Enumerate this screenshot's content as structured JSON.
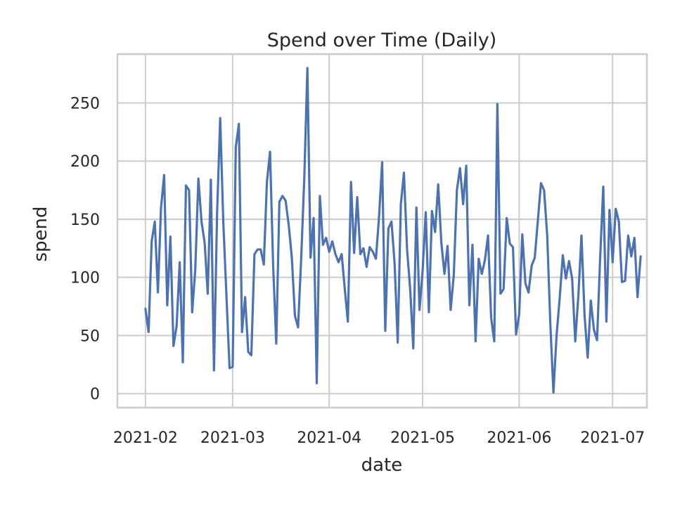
{
  "chart_data": {
    "type": "line",
    "title": "Spend over Time (Daily)",
    "xlabel": "date",
    "ylabel": "spend",
    "ylim": [
      -12,
      292
    ],
    "xlim": [
      "2021-01-23",
      "2021-07-12"
    ],
    "grid": true,
    "x_ticks": [
      "2021-02-01",
      "2021-03-01",
      "2021-04-01",
      "2021-05-01",
      "2021-06-01",
      "2021-07-01"
    ],
    "x_tick_labels": [
      "2021-02",
      "2021-03",
      "2021-04",
      "2021-05",
      "2021-06",
      "2021-07"
    ],
    "y_ticks": [
      0,
      50,
      100,
      150,
      200,
      250
    ],
    "y_tick_labels": [
      "0",
      "50",
      "100",
      "150",
      "200",
      "250"
    ],
    "series": [
      {
        "color": "#4c72b0",
        "x": [
          "2021-02-01",
          "2021-02-02",
          "2021-02-03",
          "2021-02-04",
          "2021-02-05",
          "2021-02-06",
          "2021-02-07",
          "2021-02-08",
          "2021-02-09",
          "2021-02-10",
          "2021-02-11",
          "2021-02-12",
          "2021-02-13",
          "2021-02-14",
          "2021-02-15",
          "2021-02-16",
          "2021-02-17",
          "2021-02-18",
          "2021-02-19",
          "2021-02-20",
          "2021-02-21",
          "2021-02-22",
          "2021-02-23",
          "2021-02-24",
          "2021-02-25",
          "2021-02-26",
          "2021-02-28",
          "2021-03-01",
          "2021-03-02",
          "2021-03-03",
          "2021-03-04",
          "2021-03-05",
          "2021-03-06",
          "2021-03-07",
          "2021-03-08",
          "2021-03-09",
          "2021-03-10",
          "2021-03-11",
          "2021-03-12",
          "2021-03-13",
          "2021-03-14",
          "2021-03-15",
          "2021-03-16",
          "2021-03-17",
          "2021-03-18",
          "2021-03-19",
          "2021-03-20",
          "2021-03-21",
          "2021-03-22",
          "2021-03-23",
          "2021-03-24",
          "2021-03-25",
          "2021-03-26",
          "2021-03-27",
          "2021-03-28",
          "2021-03-29",
          "2021-03-30",
          "2021-03-31",
          "2021-04-01",
          "2021-04-02",
          "2021-04-03",
          "2021-04-04",
          "2021-04-05",
          "2021-04-06",
          "2021-04-07",
          "2021-04-08",
          "2021-04-09",
          "2021-04-10",
          "2021-04-11",
          "2021-04-12",
          "2021-04-13",
          "2021-04-14",
          "2021-04-15",
          "2021-04-16",
          "2021-04-17",
          "2021-04-18",
          "2021-04-19",
          "2021-04-20",
          "2021-04-21",
          "2021-04-22",
          "2021-04-23",
          "2021-04-24",
          "2021-04-25",
          "2021-04-26",
          "2021-04-27",
          "2021-04-28",
          "2021-04-29",
          "2021-04-30",
          "2021-05-01",
          "2021-05-02",
          "2021-05-03",
          "2021-05-04",
          "2021-05-05",
          "2021-05-06",
          "2021-05-07",
          "2021-05-08",
          "2021-05-09",
          "2021-05-10",
          "2021-05-11",
          "2021-05-12",
          "2021-05-13",
          "2021-05-14",
          "2021-05-15",
          "2021-05-16",
          "2021-05-17",
          "2021-05-18",
          "2021-05-19",
          "2021-05-20",
          "2021-05-21",
          "2021-05-22",
          "2021-05-23",
          "2021-05-24",
          "2021-05-25",
          "2021-05-26",
          "2021-05-27",
          "2021-05-28",
          "2021-05-29",
          "2021-05-30",
          "2021-05-31",
          "2021-06-01",
          "2021-06-02",
          "2021-06-03",
          "2021-06-04",
          "2021-06-05",
          "2021-06-06",
          "2021-06-07",
          "2021-06-08",
          "2021-06-09",
          "2021-06-10",
          "2021-06-11",
          "2021-06-12",
          "2021-06-13",
          "2021-06-14",
          "2021-06-15",
          "2021-06-16",
          "2021-06-17",
          "2021-06-18",
          "2021-06-19",
          "2021-06-20",
          "2021-06-21",
          "2021-06-22",
          "2021-06-23",
          "2021-06-24",
          "2021-06-25",
          "2021-06-26",
          "2021-06-27",
          "2021-06-28",
          "2021-06-29",
          "2021-06-30",
          "2021-07-01",
          "2021-07-02",
          "2021-07-03",
          "2021-07-04",
          "2021-07-05",
          "2021-07-06",
          "2021-07-07",
          "2021-07-08",
          "2021-07-09",
          "2021-07-10"
        ],
        "values": [
          73,
          53,
          131,
          148,
          87,
          160,
          188,
          76,
          135,
          41,
          58,
          113,
          27,
          179,
          175,
          70,
          107,
          185,
          148,
          130,
          86,
          184,
          20,
          155,
          237,
          147,
          22,
          23,
          212,
          232,
          53,
          83,
          36,
          33,
          120,
          124,
          124,
          111,
          182,
          208,
          110,
          43,
          165,
          170,
          166,
          145,
          117,
          67,
          57,
          116,
          185,
          280,
          117,
          151,
          9,
          170,
          128,
          134,
          122,
          131,
          120,
          113,
          120,
          90,
          62,
          182,
          121,
          169,
          120,
          125,
          109,
          126,
          122,
          116,
          152,
          199,
          54,
          142,
          148,
          112,
          44,
          163,
          190,
          124,
          90,
          39,
          160,
          72,
          106,
          156,
          70,
          157,
          139,
          180,
          130,
          103,
          127,
          72,
          102,
          175,
          194,
          163,
          196,
          76,
          128,
          45,
          116,
          103,
          115,
          136,
          65,
          45,
          249,
          86,
          90,
          151,
          129,
          126,
          51,
          68,
          137,
          95,
          87,
          110,
          117,
          149,
          181,
          175,
          136,
          60,
          1,
          50,
          82,
          119,
          99,
          114,
          99,
          45,
          84,
          136,
          67,
          31,
          80,
          55,
          46,
          117,
          178,
          62,
          158,
          113,
          159,
          148,
          96,
          97,
          136,
          118,
          134,
          83,
          118
        ]
      }
    ]
  }
}
